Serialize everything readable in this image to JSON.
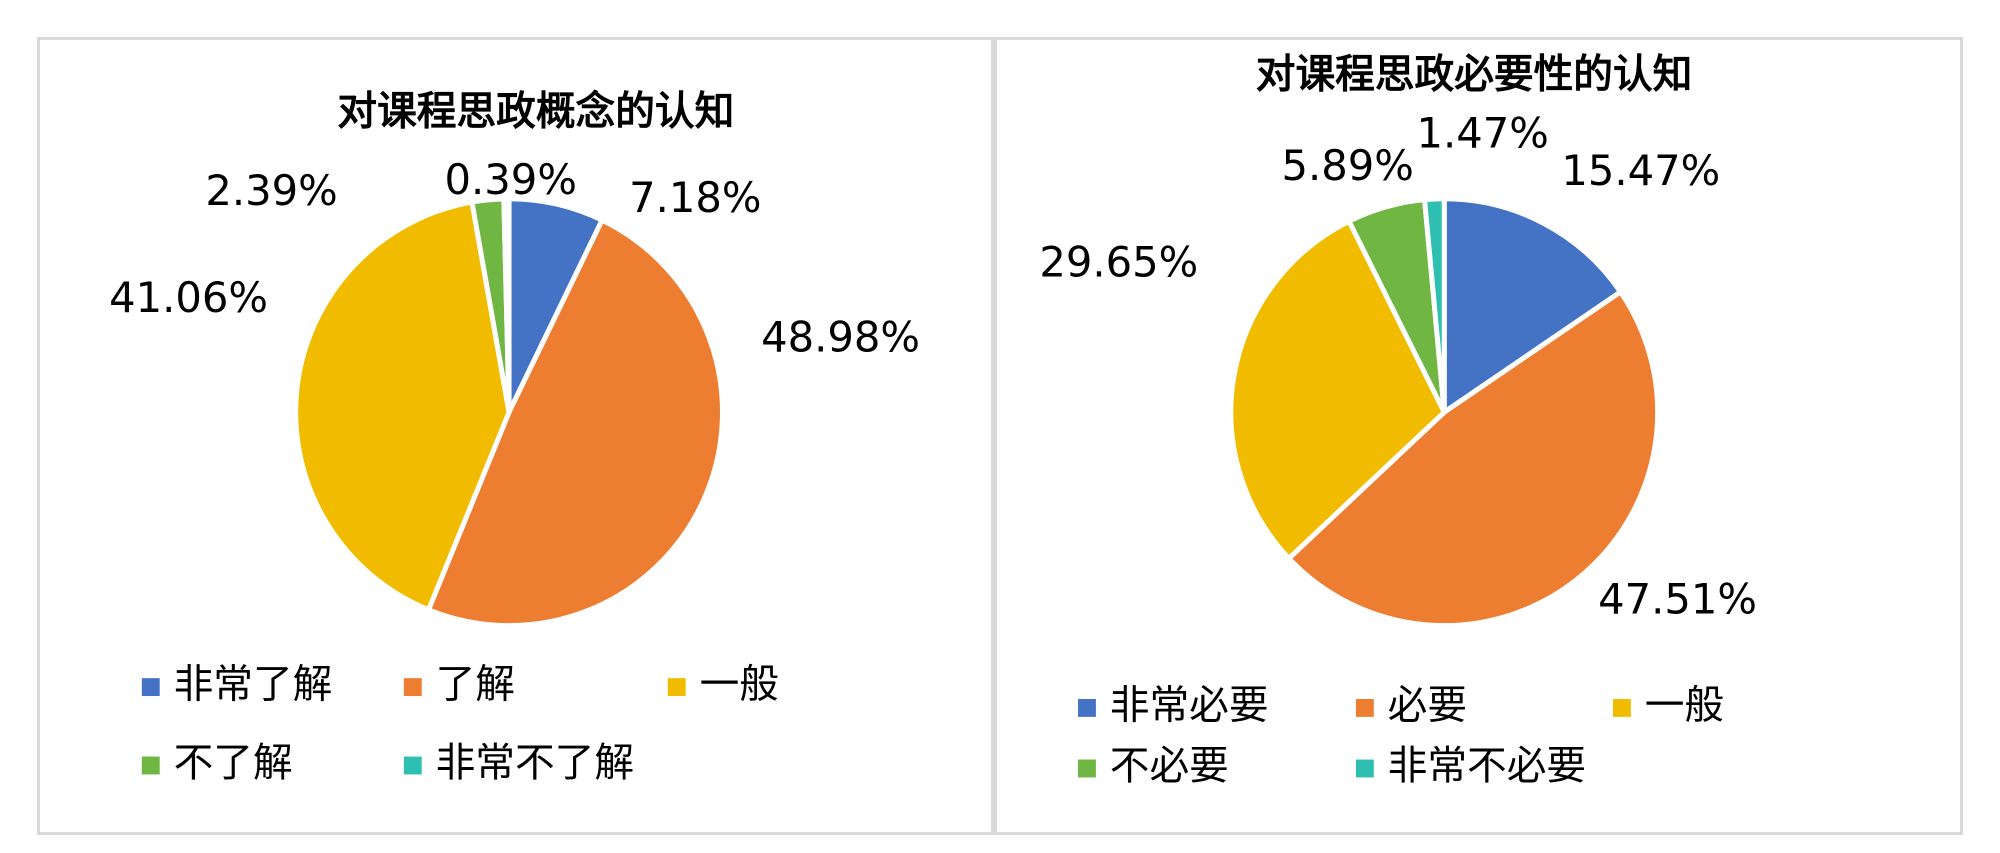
{
  "chart_data": [
    {
      "type": "pie",
      "title": "对课程思政概念的认知",
      "categories": [
        "非常了解",
        "了解",
        "一般",
        "不了解",
        "非常不了解"
      ],
      "values": [
        7.18,
        48.98,
        41.06,
        2.39,
        0.39
      ],
      "labels": [
        "7.18%",
        "48.98%",
        "41.06%",
        "2.39%",
        "0.39%"
      ],
      "colors": [
        "#4472c4",
        "#ed7d31",
        "#f1bc00",
        "#70b642",
        "#2fbfb0"
      ],
      "legend_position": "bottom"
    },
    {
      "type": "pie",
      "title": "对课程思政必要性的认知",
      "categories": [
        "非常必要",
        "必要",
        "一般",
        "不必要",
        "非常不必要"
      ],
      "values": [
        15.47,
        47.51,
        29.65,
        5.89,
        1.47
      ],
      "labels": [
        "15.47%",
        "47.51%",
        "29.65%",
        "5.89%",
        "1.47%"
      ],
      "colors": [
        "#4472c4",
        "#ed7d31",
        "#f1bc00",
        "#70b642",
        "#2fbfb0"
      ],
      "legend_position": "bottom"
    }
  ]
}
